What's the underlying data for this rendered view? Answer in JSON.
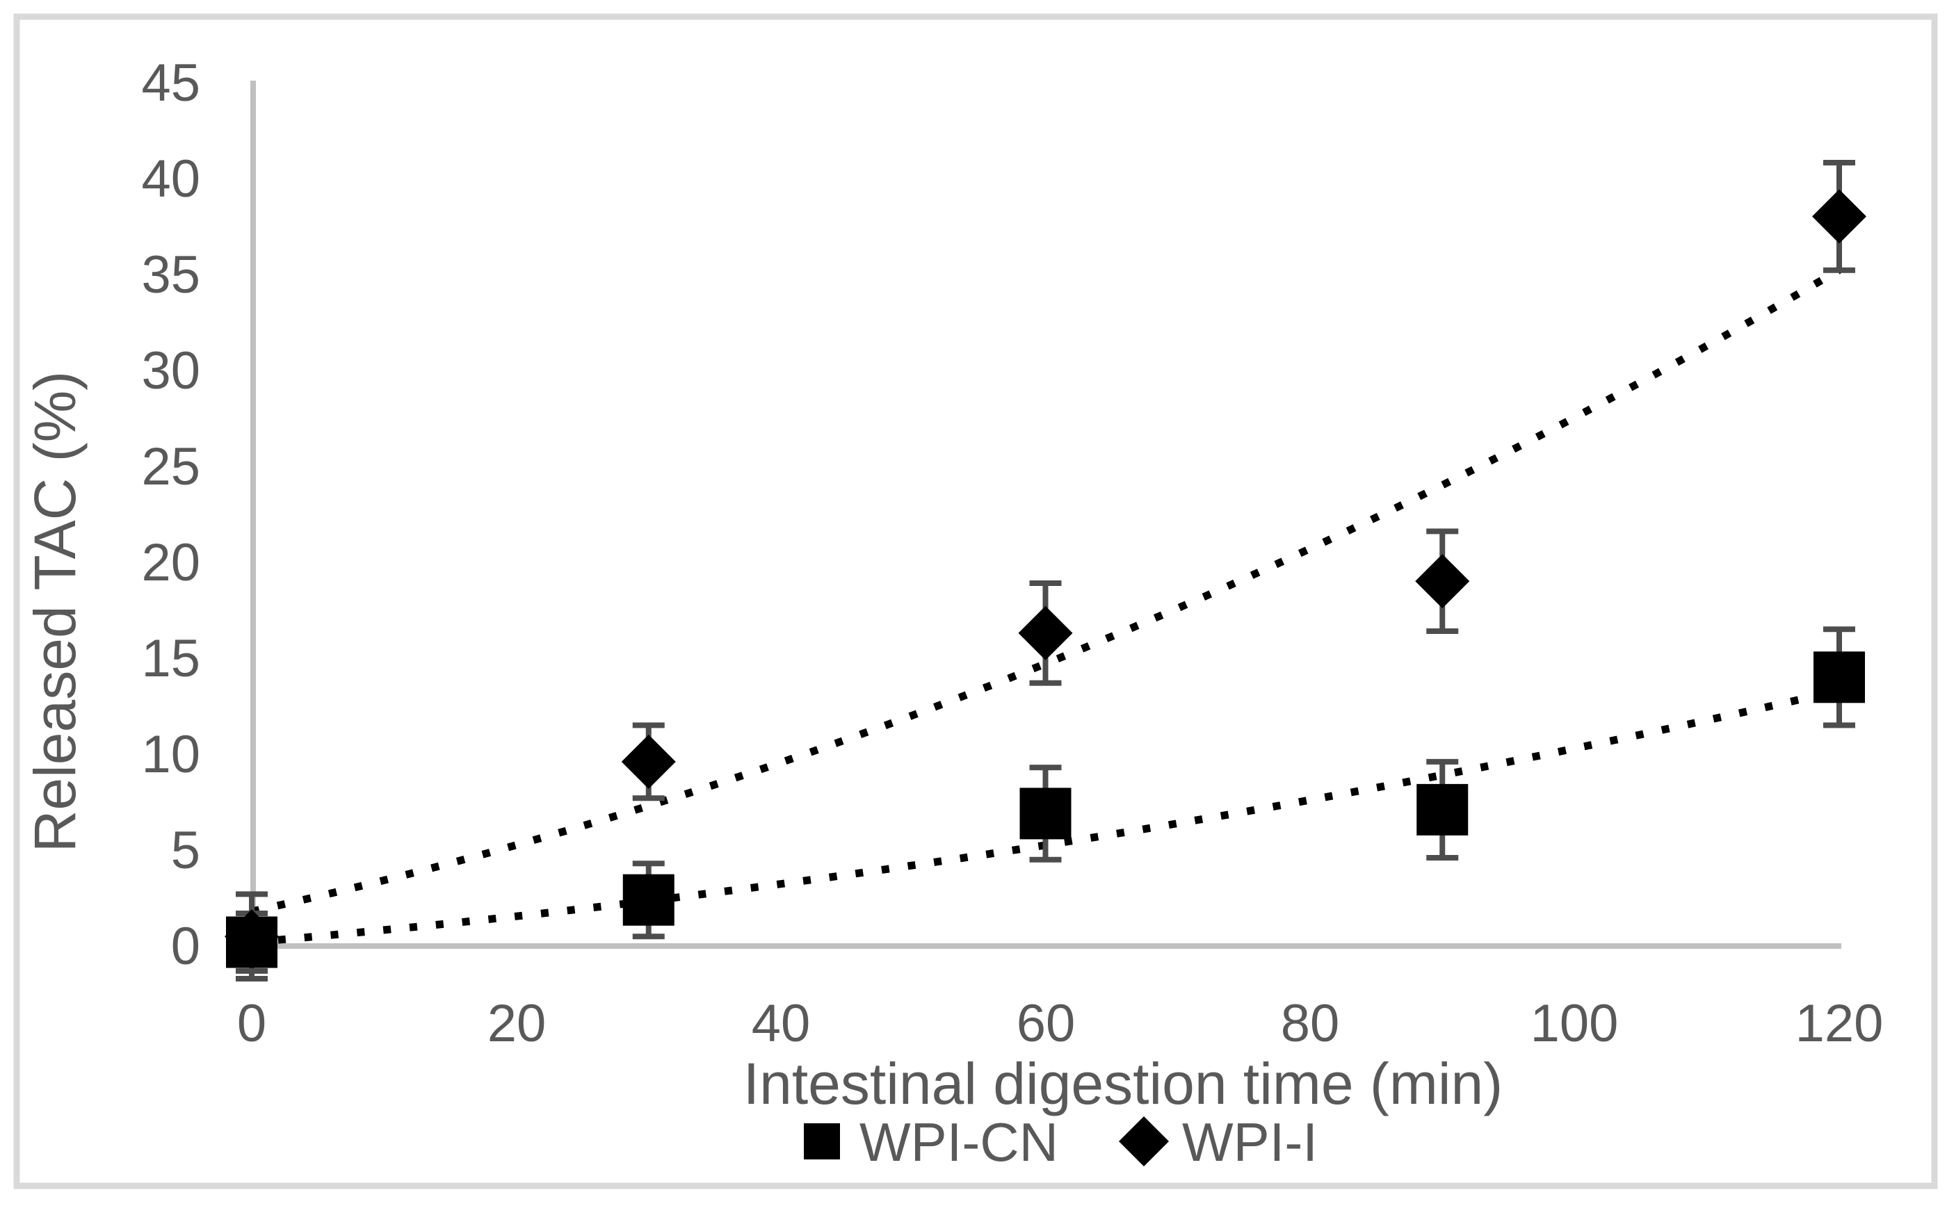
{
  "figure_type": "excel-style scatter chart with error bars and dotted trendlines",
  "colors": {
    "marker": "#000000",
    "trendline": "#000000",
    "error_bar": "#4D4D4D",
    "axis_line": "#C0C0C0",
    "label_text": "#595959",
    "figure_border": "#D9D9D9",
    "background": "#FFFFFF"
  },
  "chart_data": {
    "type": "scatter",
    "title": "",
    "xlabel": "Intestinal digestion time (min)",
    "ylabel": "Released TAC (%)",
    "xlim": [
      0,
      120
    ],
    "ylim": [
      0,
      45
    ],
    "grid": false,
    "legend_position": "bottom-center",
    "x_ticks": [
      0,
      20,
      40,
      60,
      80,
      100,
      120
    ],
    "y_ticks": [
      0,
      5,
      10,
      15,
      20,
      25,
      30,
      35,
      40,
      45
    ],
    "x_tick_labels": [
      "0",
      "20",
      "40",
      "60",
      "80",
      "100",
      "120"
    ],
    "y_tick_labels": [
      "45",
      "40",
      "35",
      "30",
      "25",
      "20",
      "15",
      "10",
      "5",
      "0"
    ],
    "series": [
      {
        "name": "WPI-I",
        "marker": "diamond",
        "color": "#000000",
        "x": [
          0,
          30,
          60,
          90,
          120
        ],
        "y": [
          0.5,
          9.6,
          16.3,
          19.0,
          38.0
        ],
        "y_err": [
          2.2,
          1.9,
          2.6,
          2.6,
          2.8
        ],
        "trendline": {
          "type": "quadratic",
          "style": "dotted",
          "a": 0.001056,
          "b": 0.1517,
          "c": 1.8
        }
      },
      {
        "name": "WPI-CN",
        "marker": "square",
        "color": "#000000",
        "x": [
          0,
          30,
          60,
          90,
          120
        ],
        "y": [
          0.2,
          2.4,
          6.9,
          7.1,
          14.0
        ],
        "y_err": [
          1.5,
          1.9,
          2.4,
          2.5,
          2.5
        ],
        "trendline": {
          "type": "quadratic",
          "style": "dotted",
          "a": 0.000417,
          "b": 0.0592,
          "c": 0.2
        }
      }
    ],
    "legend": [
      {
        "label": "WPI-CN",
        "marker": "square"
      },
      {
        "label": "WPI-I",
        "marker": "diamond"
      }
    ]
  }
}
